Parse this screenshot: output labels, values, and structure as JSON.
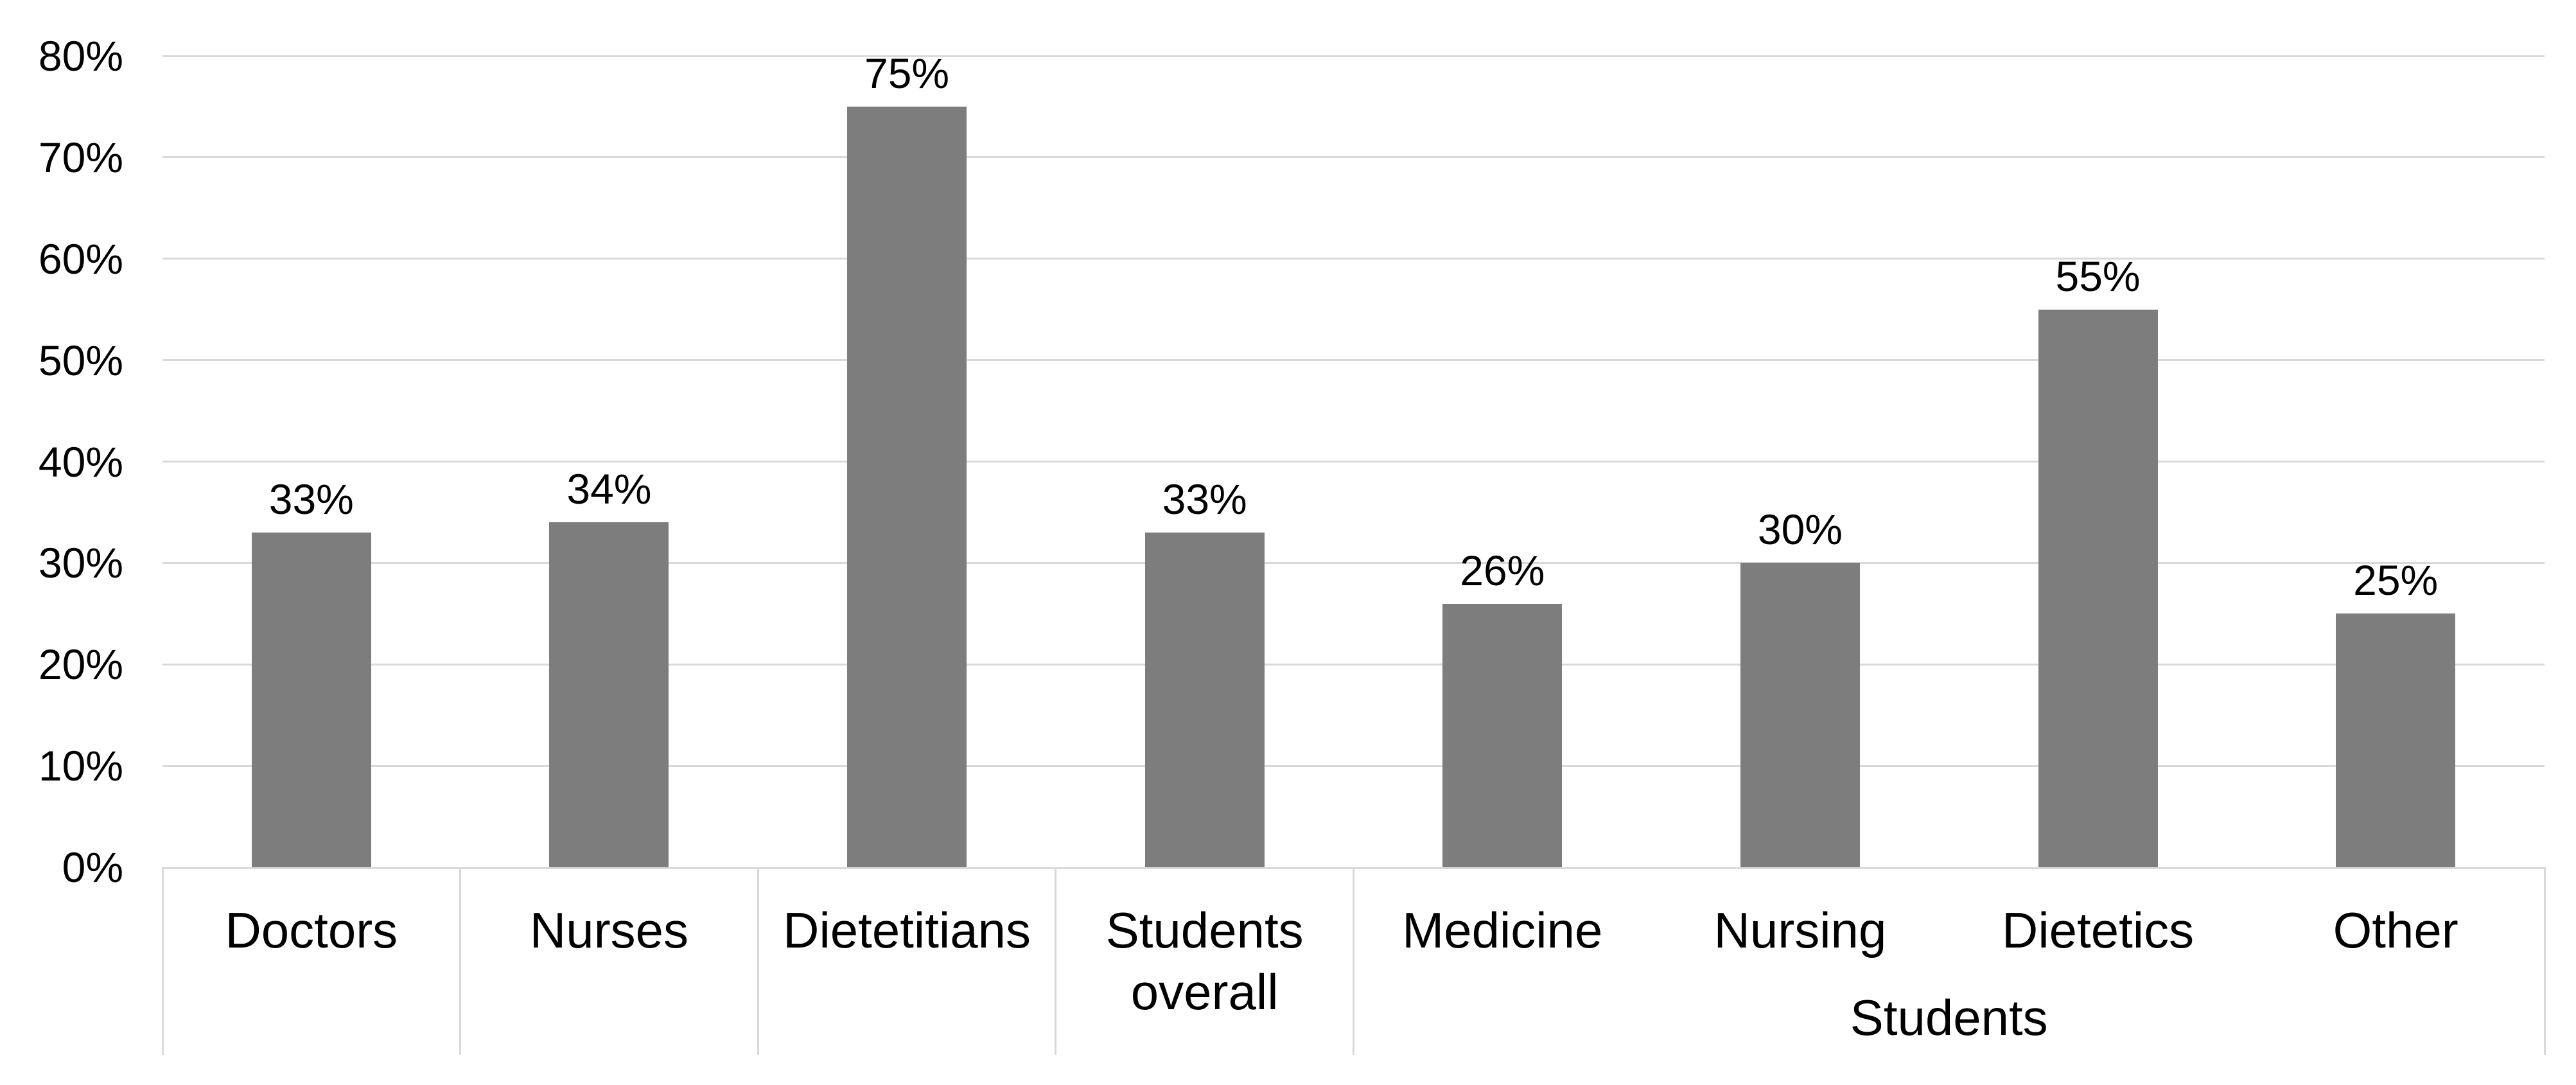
{
  "chart_data": {
    "type": "bar",
    "title": "",
    "categories": [
      "Doctors",
      "Nurses",
      "Dietetitians",
      "Students overall",
      "Medicine",
      "Nursing",
      "Dietetics",
      "Other"
    ],
    "values": [
      33,
      34,
      75,
      33,
      26,
      30,
      55,
      25
    ],
    "data_labels": [
      "33%",
      "34%",
      "75%",
      "33%",
      "26%",
      "30%",
      "55%",
      "25%"
    ],
    "group_label": "Students",
    "group_span": {
      "start_index": 4,
      "end_index": 7
    },
    "y_ticks": [
      {
        "label": "80%",
        "value": 80
      },
      {
        "label": "70%",
        "value": 70
      },
      {
        "label": "60%",
        "value": 60
      },
      {
        "label": "50%",
        "value": 50
      },
      {
        "label": "40%",
        "value": 40
      },
      {
        "label": "30%",
        "value": 30
      },
      {
        "label": "20%",
        "value": 20
      },
      {
        "label": "10%",
        "value": 10
      },
      {
        "label": "0%",
        "value": 0
      }
    ],
    "ylim": [
      0,
      80
    ],
    "xlabel": "",
    "ylabel": "",
    "grid": true,
    "legend": "none",
    "colors": {
      "bar": "#7d7d7d",
      "gridline": "#d9d9d9",
      "axis_line": "#d9d9d9",
      "divider": "#d9d9d9",
      "text": "#000000",
      "background": "#ffffff"
    }
  }
}
